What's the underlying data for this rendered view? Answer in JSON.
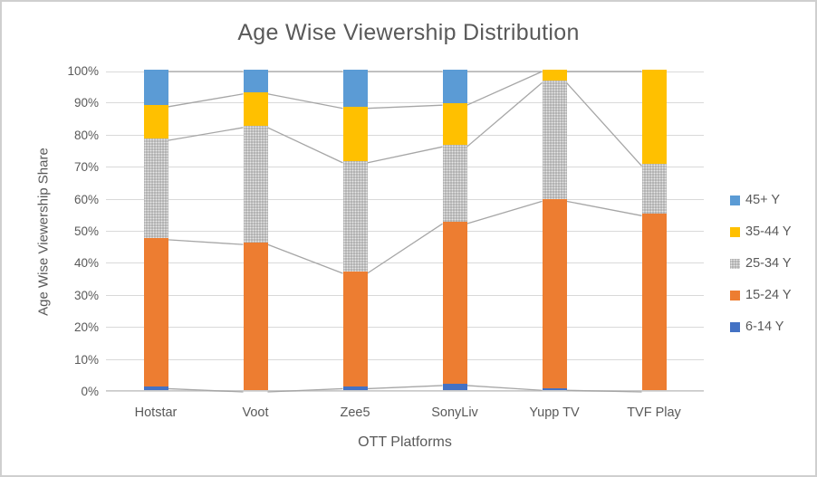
{
  "chart_data": {
    "type": "bar",
    "variant": "100%-stacked-column",
    "title": "Age Wise Viewership Distribution",
    "xlabel": "OTT Platforms",
    "ylabel": "Age Wise Viewership Share",
    "categories": [
      "Hotstar",
      "Voot",
      "Zee5",
      "SonyLiv",
      "Yupp TV",
      "TVF Play"
    ],
    "series": [
      {
        "name": "6-14 Y",
        "color": "#4472C4",
        "pattern": false,
        "values": [
          1.0,
          0.0,
          1.0,
          2.0,
          0.5,
          0.0
        ]
      },
      {
        "name": "15-24 Y",
        "color": "#ED7D31",
        "pattern": false,
        "values": [
          46.5,
          46.0,
          36.0,
          50.5,
          59.0,
          55.0
        ]
      },
      {
        "name": "25-34 Y",
        "color": "#A5A5A5",
        "pattern": true,
        "values": [
          31.0,
          36.5,
          34.5,
          24.0,
          37.0,
          15.5
        ]
      },
      {
        "name": "35-44 Y",
        "color": "#FFC000",
        "pattern": false,
        "values": [
          10.5,
          10.5,
          17.0,
          13.0,
          3.5,
          29.5
        ]
      },
      {
        "name": "45+ Y",
        "color": "#5B9BD5",
        "pattern": false,
        "values": [
          11.0,
          7.0,
          11.5,
          10.5,
          0.0,
          0.0
        ]
      }
    ],
    "legend_order_top_to_bottom": [
      "45+ Y",
      "35-44 Y",
      "25-34 Y",
      "15-24 Y",
      "6-14 Y"
    ],
    "legend_position": "right",
    "y_ticks": [
      "100%",
      "90%",
      "80%",
      "70%",
      "60%",
      "50%",
      "40%",
      "30%",
      "20%",
      "10%",
      "0%"
    ],
    "ylim": [
      0,
      100
    ],
    "grid": true,
    "has_series_connector_lines": true,
    "colors": {
      "text": "#595959",
      "gridline": "#D9D9D9",
      "axis_line": "#C9C9C9",
      "series_line": "#A6A6A6",
      "background": "#FFFFFF",
      "frame_border": "#CFCFCF"
    }
  }
}
